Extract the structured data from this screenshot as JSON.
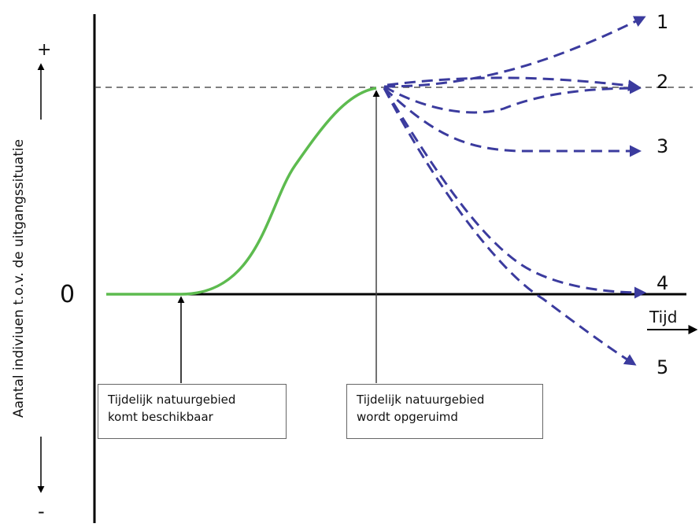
{
  "y_axis": {
    "label": "Aantal indiviuen t.o.v. de uitgangssituatie",
    "plus_sign": "+",
    "minus_sign": "-",
    "zero_label": "0"
  },
  "x_axis": {
    "label": "Tijd"
  },
  "events": [
    {
      "line1": "Tijdelijk natuurgebied",
      "line2": "komt beschikbaar"
    },
    {
      "line1": "Tijdelijk natuurgebied",
      "line2": "wordt opgeruimd"
    }
  ],
  "scenarios": [
    "1",
    "2",
    "3",
    "4",
    "5"
  ],
  "colors": {
    "growth_curve": "#5dbb4f",
    "scenario_arrows": "#3b3b9e",
    "axis": "#000000"
  }
}
